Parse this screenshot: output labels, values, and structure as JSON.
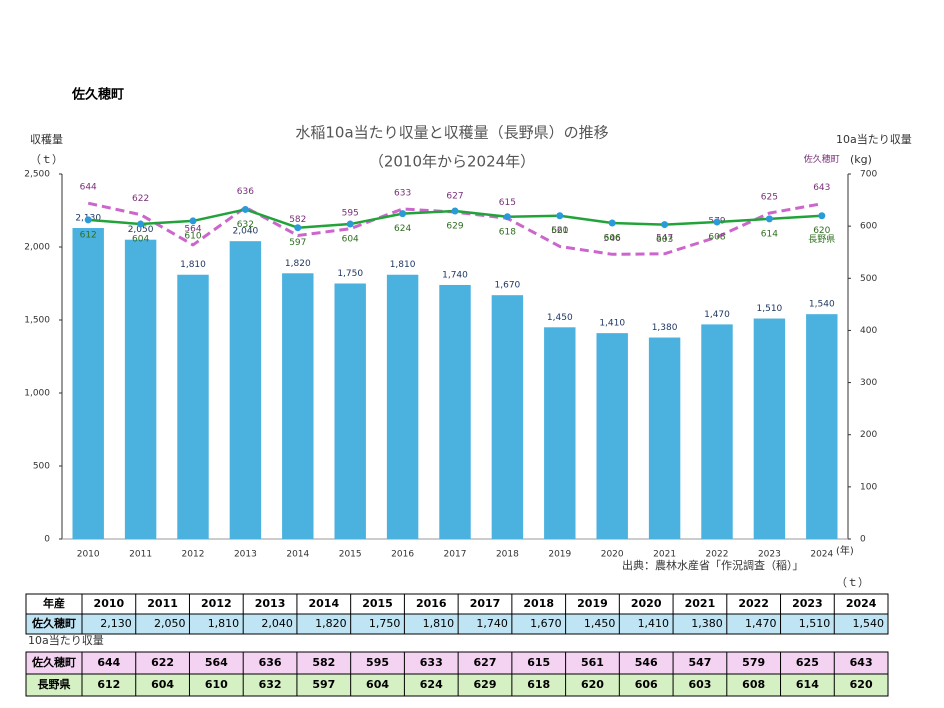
{
  "page_title": "佐久穂町",
  "chart_data": {
    "type": "bar",
    "title": "水稲10a当たり収量と収穫量（長野県）の推移",
    "subtitle": "（2010年から2024年）",
    "ylabel": "収穫量",
    "ylabel_unit": "（ｔ）",
    "y2label": "10a当たり収量",
    "y2label_unit": "(kg)",
    "xlabel_unit": "(年)",
    "source": "出典：農林水産省「作況調査（稲）」",
    "categories": [
      "2010",
      "2011",
      "2012",
      "2013",
      "2014",
      "2015",
      "2016",
      "2017",
      "2018",
      "2019",
      "2020",
      "2021",
      "2022",
      "2023",
      "2024"
    ],
    "ylim": [
      0,
      2500
    ],
    "yticks": [
      0,
      500,
      {
        "value": 1000,
        "label": "1,000"
      },
      {
        "value": 1500,
        "label": "1,500"
      },
      {
        "value": 2000,
        "label": "2,000"
      },
      {
        "value": 2500,
        "label": "2,500"
      }
    ],
    "y2lim": [
      0,
      700
    ],
    "y2ticks": [
      0,
      100,
      200,
      300,
      400,
      500,
      600,
      700
    ],
    "series": [
      {
        "name": "佐久穂町",
        "type": "bar",
        "color": "#4bb2e0",
        "values": [
          2130,
          2050,
          1810,
          2040,
          1820,
          1750,
          1810,
          1740,
          1670,
          1450,
          1410,
          1380,
          1470,
          1510,
          1540
        ],
        "value_labels": [
          "2,130",
          "2,050",
          "1,810",
          "2,040",
          "1,820",
          "1,750",
          "1,810",
          "1,740",
          "1,670",
          "1,450",
          "1,410",
          "1,380",
          "1,470",
          "1,510",
          "1,540"
        ]
      },
      {
        "name": "佐久穂町",
        "type": "line",
        "axis": "y2",
        "color": "#cc66cc",
        "dashed": true,
        "values": [
          644,
          622,
          564,
          636,
          582,
          595,
          633,
          627,
          615,
          561,
          546,
          547,
          579,
          625,
          643
        ]
      },
      {
        "name": "長野県",
        "type": "line",
        "axis": "y2",
        "color": "#22a33a",
        "marker_color": "#2a9ad8",
        "values": [
          612,
          604,
          610,
          632,
          597,
          604,
          624,
          629,
          618,
          620,
          606,
          603,
          608,
          614,
          620
        ]
      }
    ]
  },
  "table": {
    "corner": "年産",
    "unit": "（ｔ）",
    "section_label": "10a当たり収量"
  }
}
